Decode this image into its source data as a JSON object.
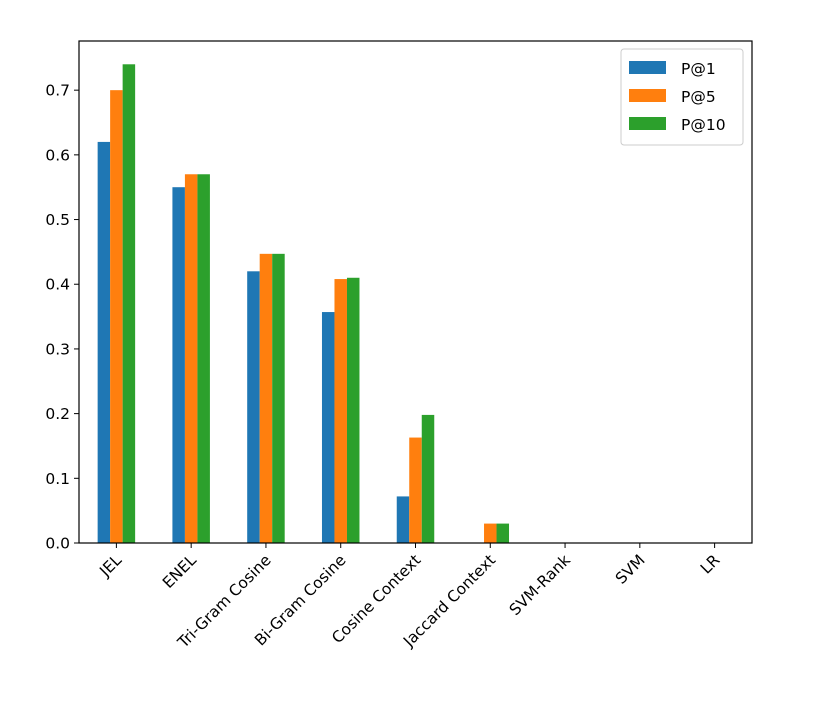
{
  "chart_data": {
    "type": "bar",
    "title": "",
    "xlabel": "",
    "ylabel": "",
    "categories": [
      "JEL",
      "ENEL",
      "Tri-Gram Cosine",
      "Bi-Gram Cosine",
      "Cosine Context",
      "Jaccard Context",
      "SVM-Rank",
      "SVM",
      "LR"
    ],
    "series": [
      {
        "name": "P@1",
        "color": "#1f77b4",
        "values": [
          0.62,
          0.55,
          0.42,
          0.357,
          0.072,
          0.0,
          0.0,
          0.0,
          0.0
        ]
      },
      {
        "name": "P@5",
        "color": "#ff7f0e",
        "values": [
          0.7,
          0.57,
          0.447,
          0.408,
          0.163,
          0.03,
          0.0,
          0.0,
          0.0
        ]
      },
      {
        "name": "P@10",
        "color": "#2ca02c",
        "values": [
          0.74,
          0.57,
          0.447,
          0.41,
          0.198,
          0.03,
          0.0,
          0.0,
          0.0
        ]
      }
    ],
    "yticks": [
      "0.0",
      "0.1",
      "0.2",
      "0.3",
      "0.4",
      "0.5",
      "0.6",
      "0.7"
    ],
    "ylim": [
      0,
      0.776
    ],
    "grid": false,
    "legend_position": "top-right"
  }
}
